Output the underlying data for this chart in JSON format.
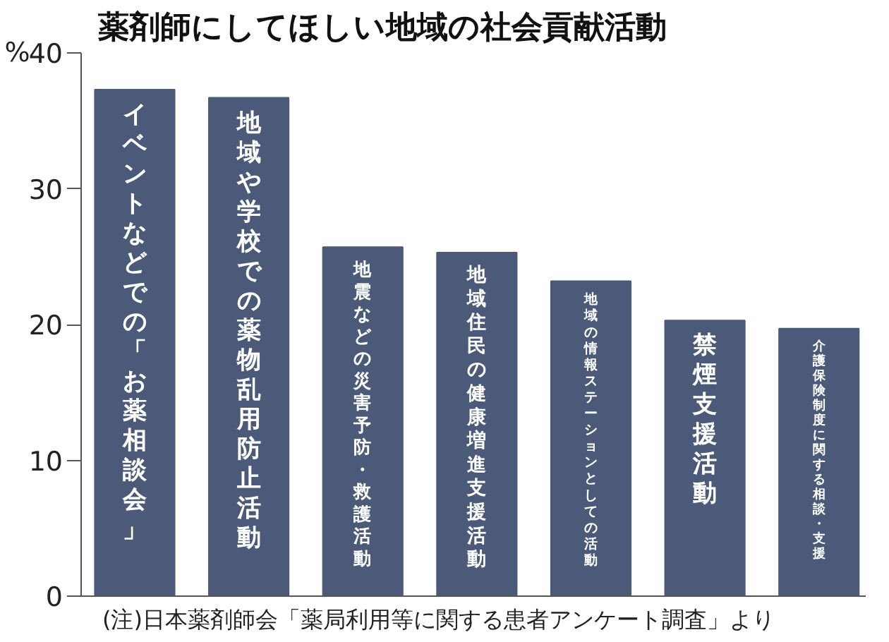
{
  "chart_data": {
    "type": "bar",
    "title": "薬剤師にしてほしい地域の社会貢献活動",
    "ylabel": "%",
    "categories": [
      "イベントなどでの「お薬相談会」",
      "地域や学校での薬物乱用防止活動",
      "地震などの災害予防・救護活動",
      "地域住民の健康増進支援活動",
      "地域の情報ステーションとしての活動",
      "禁煙支援活動",
      "介護保険制度に関する相談・支援"
    ],
    "values": [
      37.3,
      36.7,
      25.7,
      25.3,
      23.2,
      20.3,
      19.7
    ],
    "color": "#4b5a78",
    "ylim": [
      0,
      40
    ],
    "yticks": [
      0,
      10,
      20,
      30,
      40
    ],
    "grid": false,
    "tick_labels": "y",
    "annotations": [
      "(注)日本薬剤師会「薬局利用等に関する患者アンケート調査」より"
    ]
  }
}
